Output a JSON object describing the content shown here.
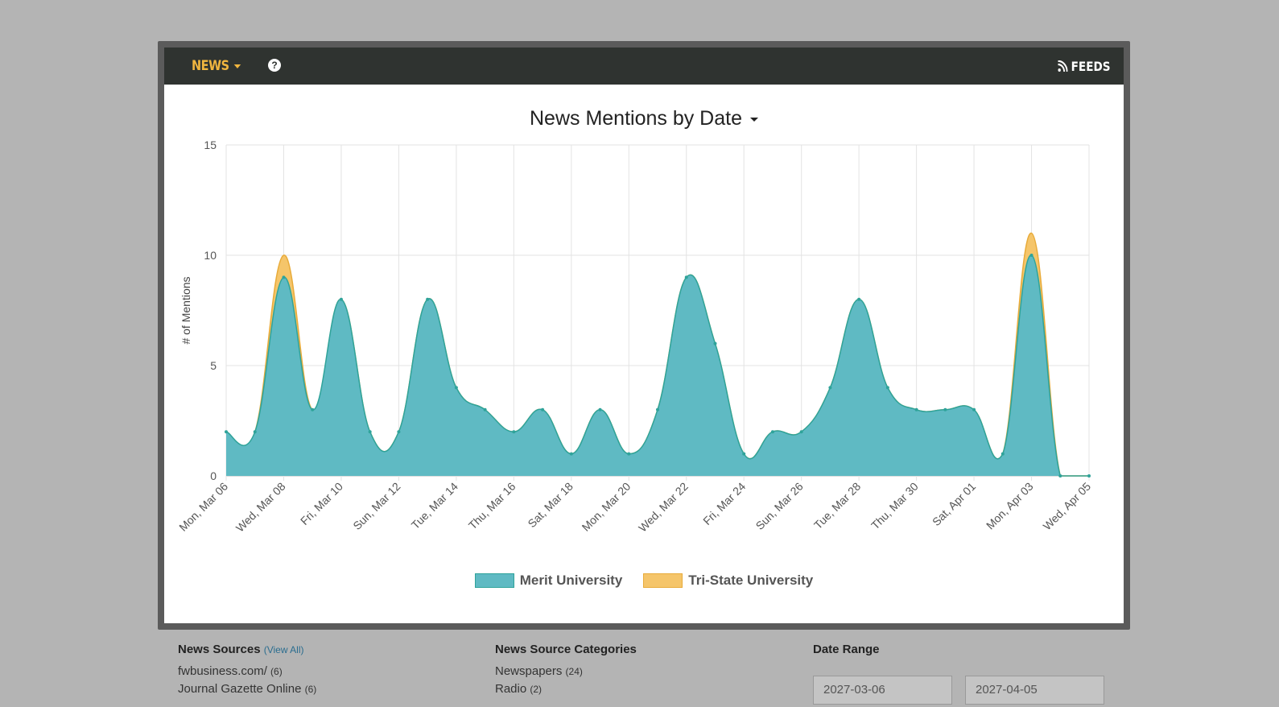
{
  "navbar": {
    "news_label": "NEWS",
    "feeds_label": "FEEDS",
    "help_glyph": "?"
  },
  "chart_header": {
    "title": "News Mentions by Date"
  },
  "chart_data": {
    "type": "area",
    "title": "News Mentions by Date",
    "xlabel": "",
    "ylabel": "# of Mentions",
    "ylim": [
      0,
      15
    ],
    "yticks": [
      0,
      5,
      10,
      15
    ],
    "x": [
      "2027-03-06",
      "2027-03-07",
      "2027-03-08",
      "2027-03-09",
      "2027-03-10",
      "2027-03-11",
      "2027-03-12",
      "2027-03-13",
      "2027-03-14",
      "2027-03-15",
      "2027-03-16",
      "2027-03-17",
      "2027-03-18",
      "2027-03-19",
      "2027-03-20",
      "2027-03-21",
      "2027-03-22",
      "2027-03-23",
      "2027-03-24",
      "2027-03-25",
      "2027-03-26",
      "2027-03-27",
      "2027-03-28",
      "2027-03-29",
      "2027-03-30",
      "2027-03-31",
      "2027-04-01",
      "2027-04-02",
      "2027-04-03",
      "2027-04-04",
      "2027-04-05"
    ],
    "tick_labels": [
      "Mon, Mar 06",
      "Wed, Mar 08",
      "Fri, Mar 10",
      "Sun, Mar 12",
      "Tue, Mar 14",
      "Thu, Mar 16",
      "Sat, Mar 18",
      "Mon, Mar 20",
      "Wed, Mar 22",
      "Fri, Mar 24",
      "Sun, Mar 26",
      "Tue, Mar 28",
      "Thu, Mar 30",
      "Sat, Apr 01",
      "Mon, Apr 03",
      "Wed, Apr 05"
    ],
    "stacked": true,
    "grid": true,
    "legend_position": "bottom",
    "series": [
      {
        "name": "Merit University",
        "color": "#5fbac3",
        "line_color": "#2fa39a",
        "values": [
          2,
          2,
          9,
          3,
          8,
          2,
          2,
          8,
          4,
          3,
          2,
          3,
          1,
          3,
          1,
          3,
          9,
          6,
          1,
          2,
          2,
          4,
          8,
          4,
          3,
          3,
          3,
          1,
          10,
          0,
          0
        ]
      },
      {
        "name": "Tri-State University",
        "color": "#f5c56a",
        "line_color": "#e8ab3a",
        "values": [
          0,
          0,
          1,
          0,
          0,
          0,
          0,
          0,
          0,
          0,
          0,
          0,
          0,
          0,
          0,
          0,
          0,
          0,
          0,
          0,
          0,
          0,
          0,
          0,
          0,
          0,
          0,
          0,
          1,
          0,
          0
        ]
      }
    ]
  },
  "filters": {
    "sources": {
      "title": "News Sources",
      "view_all": "(View All)",
      "items": [
        {
          "name": "fwbusiness.com/",
          "count": "(6)"
        },
        {
          "name": "Journal Gazette Online",
          "count": "(6)"
        }
      ]
    },
    "categories": {
      "title": "News Source Categories",
      "items": [
        {
          "name": "Newspapers",
          "count": "(24)"
        },
        {
          "name": "Radio",
          "count": "(2)"
        }
      ]
    },
    "date_range": {
      "title": "Date Range",
      "start": "2027-03-06",
      "end": "2027-04-05"
    }
  }
}
